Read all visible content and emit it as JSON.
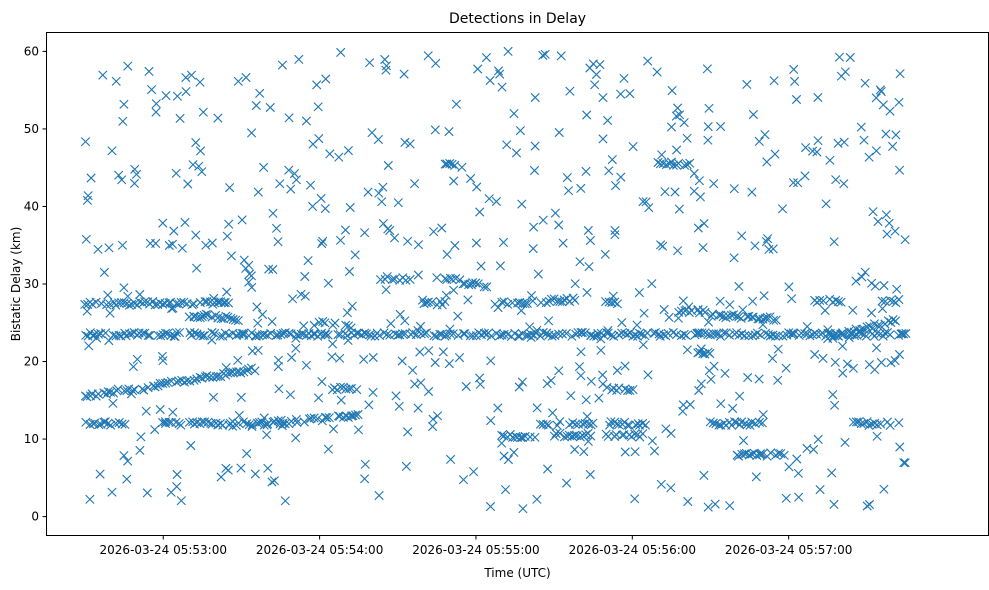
{
  "chart_data": {
    "type": "scatter",
    "title": "Detections in Delay",
    "xlabel": "Time (UTC)",
    "ylabel": "Bistatic Delay (km)",
    "marker": "x",
    "marker_color": "#1f77b4",
    "grid": false,
    "x_start": "2026-03-24 05:52:30",
    "x_end": "2026-03-24 05:57:45",
    "xlim": [
      "2026-03-24 05:52:15",
      "2026-03-24 05:58:00"
    ],
    "ylim": [
      -2.5,
      62.5
    ],
    "x_ticks": [
      {
        "value": "2026-03-24 05:53:00",
        "label": "2026-03-24 05:53:00"
      },
      {
        "value": "2026-03-24 05:54:00",
        "label": "2026-03-24 05:54:00"
      },
      {
        "value": "2026-03-24 05:55:00",
        "label": "2026-03-24 05:55:00"
      },
      {
        "value": "2026-03-24 05:56:00",
        "label": "2026-03-24 05:56:00"
      },
      {
        "value": "2026-03-24 05:57:00",
        "label": "2026-03-24 05:57:00"
      }
    ],
    "y_ticks": [
      0,
      10,
      20,
      30,
      40,
      50,
      60
    ],
    "tracks": [
      {
        "t_start": "2026-03-24 05:52:30",
        "t_end": "2026-03-24 05:57:45",
        "delay_start": 23.5,
        "delay_end": 23.5
      },
      {
        "t_start": "2026-03-24 05:52:30",
        "t_end": "2026-03-24 05:53:25",
        "delay_start": 27.5,
        "delay_end": 27.5
      },
      {
        "t_start": "2026-03-24 05:52:30",
        "t_end": "2026-03-24 05:53:35",
        "delay_start": 15.5,
        "delay_end": 19.0
      },
      {
        "t_start": "2026-03-24 05:52:30",
        "t_end": "2026-03-24 05:52:45",
        "delay_start": 12.0,
        "delay_end": 12.0
      },
      {
        "t_start": "2026-03-24 05:53:00",
        "t_end": "2026-03-24 05:53:40",
        "delay_start": 12.0,
        "delay_end": 12.0
      },
      {
        "t_start": "2026-03-24 05:53:10",
        "t_end": "2026-03-24 05:53:30",
        "delay_start": 26.0,
        "delay_end": 25.5
      },
      {
        "t_start": "2026-03-24 05:53:40",
        "t_end": "2026-03-24 05:54:15",
        "delay_start": 12.0,
        "delay_end": 13.0
      },
      {
        "t_start": "2026-03-24 05:54:00",
        "t_end": "2026-03-24 05:54:12",
        "delay_start": 25.0,
        "delay_end": 24.5
      },
      {
        "t_start": "2026-03-24 05:54:05",
        "t_end": "2026-03-24 05:54:15",
        "delay_start": 16.5,
        "delay_end": 16.5
      },
      {
        "t_start": "2026-03-24 05:54:25",
        "t_end": "2026-03-24 05:54:35",
        "delay_start": 30.8,
        "delay_end": 30.5
      },
      {
        "t_start": "2026-03-24 05:54:40",
        "t_end": "2026-03-24 05:54:48",
        "delay_start": 27.5,
        "delay_end": 27.5
      },
      {
        "t_start": "2026-03-24 05:54:48",
        "t_end": "2026-03-24 05:54:52",
        "delay_start": 45.5,
        "delay_end": 45.5
      },
      {
        "t_start": "2026-03-24 05:54:48",
        "t_end": "2026-03-24 05:55:05",
        "delay_start": 30.8,
        "delay_end": 29.5
      },
      {
        "t_start": "2026-03-24 05:55:10",
        "t_end": "2026-03-24 05:55:22",
        "delay_start": 10.5,
        "delay_end": 10.0
      },
      {
        "t_start": "2026-03-24 05:55:10",
        "t_end": "2026-03-24 05:55:38",
        "delay_start": 27.5,
        "delay_end": 28.0
      },
      {
        "t_start": "2026-03-24 05:55:25",
        "t_end": "2026-03-24 05:55:45",
        "delay_start": 12.0,
        "delay_end": 12.0
      },
      {
        "t_start": "2026-03-24 05:55:30",
        "t_end": "2026-03-24 05:55:45",
        "delay_start": 10.5,
        "delay_end": 10.5
      },
      {
        "t_start": "2026-03-24 05:55:50",
        "t_end": "2026-03-24 05:55:55",
        "delay_start": 27.5,
        "delay_end": 27.5
      },
      {
        "t_start": "2026-03-24 05:55:50",
        "t_end": "2026-03-24 05:56:00",
        "delay_start": 16.5,
        "delay_end": 16.5
      },
      {
        "t_start": "2026-03-24 05:55:50",
        "t_end": "2026-03-24 05:56:05",
        "delay_start": 10.5,
        "delay_end": 10.5
      },
      {
        "t_start": "2026-03-24 05:55:50",
        "t_end": "2026-03-24 05:56:05",
        "delay_start": 12.0,
        "delay_end": 12.0
      },
      {
        "t_start": "2026-03-24 05:56:10",
        "t_end": "2026-03-24 05:56:22",
        "delay_start": 45.5,
        "delay_end": 45.5
      },
      {
        "t_start": "2026-03-24 05:56:15",
        "t_end": "2026-03-24 05:56:28",
        "delay_start": 26.5,
        "delay_end": 26.5
      },
      {
        "t_start": "2026-03-24 05:56:25",
        "t_end": "2026-03-24 05:56:30",
        "delay_start": 21.0,
        "delay_end": 21.0
      },
      {
        "t_start": "2026-03-24 05:56:30",
        "t_end": "2026-03-24 05:56:55",
        "delay_start": 26.0,
        "delay_end": 25.5
      },
      {
        "t_start": "2026-03-24 05:56:40",
        "t_end": "2026-03-24 05:56:58",
        "delay_start": 8.0,
        "delay_end": 8.0
      },
      {
        "t_start": "2026-03-24 05:56:30",
        "t_end": "2026-03-24 05:56:50",
        "delay_start": 12.0,
        "delay_end": 12.0
      },
      {
        "t_start": "2026-03-24 05:57:10",
        "t_end": "2026-03-24 05:57:20",
        "delay_start": 27.8,
        "delay_end": 27.8
      },
      {
        "t_start": "2026-03-24 05:57:15",
        "t_end": "2026-03-24 05:57:42",
        "delay_start": 23.0,
        "delay_end": 25.5
      },
      {
        "t_start": "2026-03-24 05:57:25",
        "t_end": "2026-03-24 05:57:42",
        "delay_start": 12.0,
        "delay_end": 12.0
      },
      {
        "t_start": "2026-03-24 05:57:35",
        "t_end": "2026-03-24 05:57:42",
        "delay_start": 27.8,
        "delay_end": 27.8
      }
    ]
  }
}
